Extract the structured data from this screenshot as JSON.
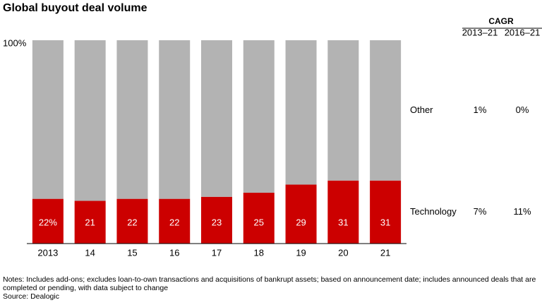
{
  "chart_data": {
    "type": "stacked_bar",
    "title": "Global buyout deal volume",
    "categories": [
      "2013",
      "14",
      "15",
      "16",
      "17",
      "18",
      "19",
      "20",
      "21"
    ],
    "series": [
      {
        "name": "Technology",
        "color": "#cc0000",
        "values": [
          22,
          21,
          22,
          22,
          23,
          25,
          29,
          31,
          31
        ],
        "value_labels": [
          "22%",
          "21",
          "22",
          "22",
          "23",
          "25",
          "29",
          "31",
          "31"
        ],
        "cagr": [
          "7%",
          "11%"
        ]
      },
      {
        "name": "Other",
        "color": "#b3b3b3",
        "values": [
          78,
          79,
          78,
          78,
          77,
          75,
          71,
          69,
          69
        ],
        "cagr": [
          "1%",
          "0%"
        ]
      }
    ],
    "ylim": [
      0,
      100
    ],
    "yticks": [
      {
        "value": 100,
        "label": "100%"
      }
    ],
    "cagr_title": "CAGR",
    "cagr_columns": [
      "2013–21",
      "2016–21"
    ],
    "notes": "Notes: Includes add-ons; excludes loan-to-own transactions and acquisitions of bankrupt assets; based on announcement date; includes announced deals that are completed or pending, with data subject to change",
    "source": "Source: Dealogic"
  }
}
